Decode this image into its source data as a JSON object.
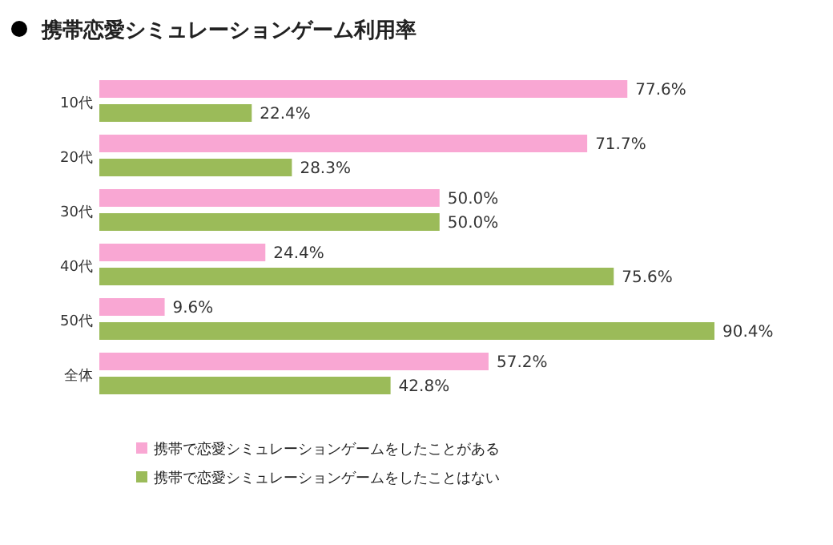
{
  "chart_data": {
    "type": "bar",
    "orientation": "horizontal",
    "title": "携帯恋愛シミュレーションゲーム利用率",
    "categories": [
      "10代",
      "20代",
      "30代",
      "40代",
      "50代",
      "全体"
    ],
    "series": [
      {
        "name": "携帯で恋愛シミュレーションゲームをしたことがある",
        "color": "#f9a7d3",
        "values": [
          77.6,
          71.7,
          50.0,
          24.4,
          9.6,
          57.2
        ],
        "value_labels": [
          "77.6%",
          "71.7%",
          "50.0%",
          "24.4%",
          "9.6%",
          "57.2%"
        ]
      },
      {
        "name": "携帯で恋愛シミュレーションゲームをしたことはない",
        "color": "#9bbb59",
        "values": [
          22.4,
          28.3,
          50.0,
          75.6,
          90.4,
          42.8
        ],
        "value_labels": [
          "22.4%",
          "28.3%",
          "50.0%",
          "75.6%",
          "90.4%",
          "42.8%"
        ]
      }
    ],
    "legend": "bottom"
  }
}
